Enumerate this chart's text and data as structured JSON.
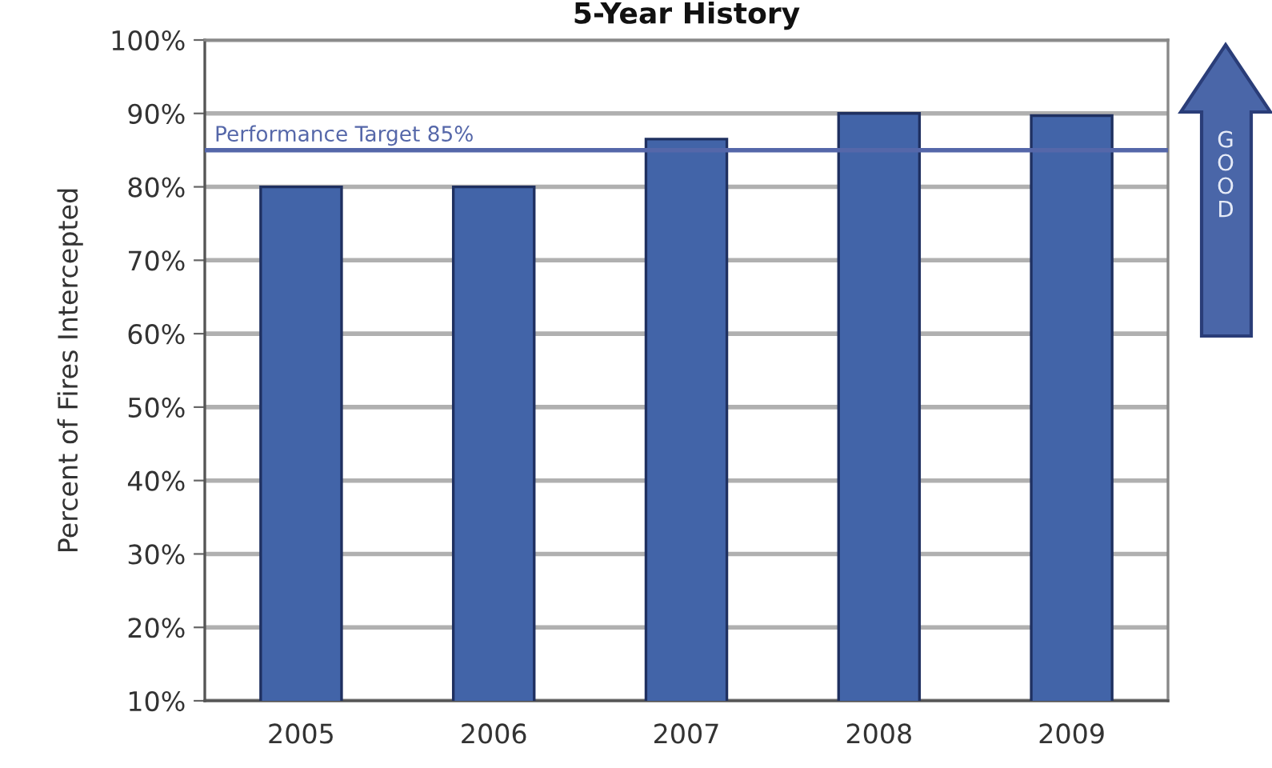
{
  "chart_data": {
    "type": "bar",
    "title": "5-Year History",
    "ylabel": "Percent of Fires Intercepted",
    "categories": [
      "2005",
      "2006",
      "2007",
      "2008",
      "2009"
    ],
    "values": [
      80,
      80,
      86.5,
      90,
      89.7
    ],
    "color": "#4264a8",
    "ylim": [
      10,
      100
    ],
    "yticks": [
      {
        "value": 10,
        "label": "10%"
      },
      {
        "value": 20,
        "label": "20%"
      },
      {
        "value": 30,
        "label": "30%"
      },
      {
        "value": 40,
        "label": "40%"
      },
      {
        "value": 50,
        "label": "50%"
      },
      {
        "value": 60,
        "label": "60%"
      },
      {
        "value": 70,
        "label": "70%"
      },
      {
        "value": 80,
        "label": "80%"
      },
      {
        "value": 90,
        "label": "90%"
      },
      {
        "value": 100,
        "label": "100%"
      }
    ],
    "grid": "y",
    "ref_lines": [
      {
        "axis": "y",
        "value": 85,
        "label": "Performance Target 85%",
        "color": "#5567a9"
      }
    ],
    "annotations": [
      "GOOD"
    ]
  }
}
